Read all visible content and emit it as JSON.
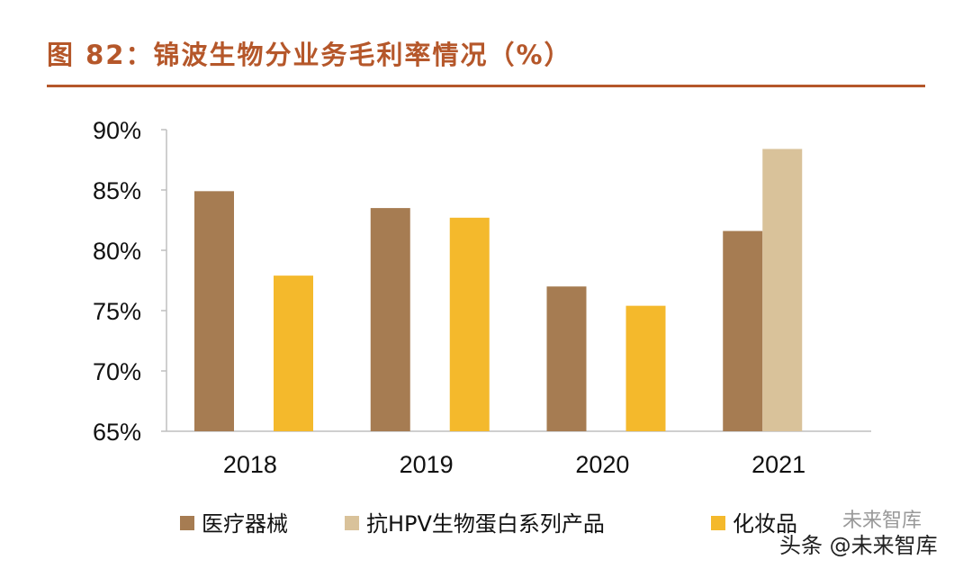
{
  "chart_data": {
    "type": "bar",
    "title": "图 82：锦波生物分业务毛利率情况（%）",
    "categories": [
      "2018",
      "2019",
      "2020",
      "2021"
    ],
    "series": [
      {
        "name": "医疗器械",
        "color": "#a67c52",
        "values": [
          84.9,
          83.5,
          77.0,
          81.6
        ]
      },
      {
        "name": "抗HPV生物蛋白系列产品",
        "color": "#d9c29a",
        "values": [
          null,
          null,
          null,
          88.4
        ]
      },
      {
        "name": "化妆品",
        "color": "#f4b92c",
        "values": [
          77.9,
          82.7,
          75.4,
          null
        ]
      }
    ],
    "yticks": [
      "90%",
      "85%",
      "80%",
      "75%",
      "70%",
      "65%"
    ],
    "ylim": [
      65,
      90
    ],
    "xlabel": "",
    "ylabel": "",
    "legend": "bottom"
  },
  "watermark": {
    "main": "头条 @未来智库",
    "faint": "未来智库"
  }
}
